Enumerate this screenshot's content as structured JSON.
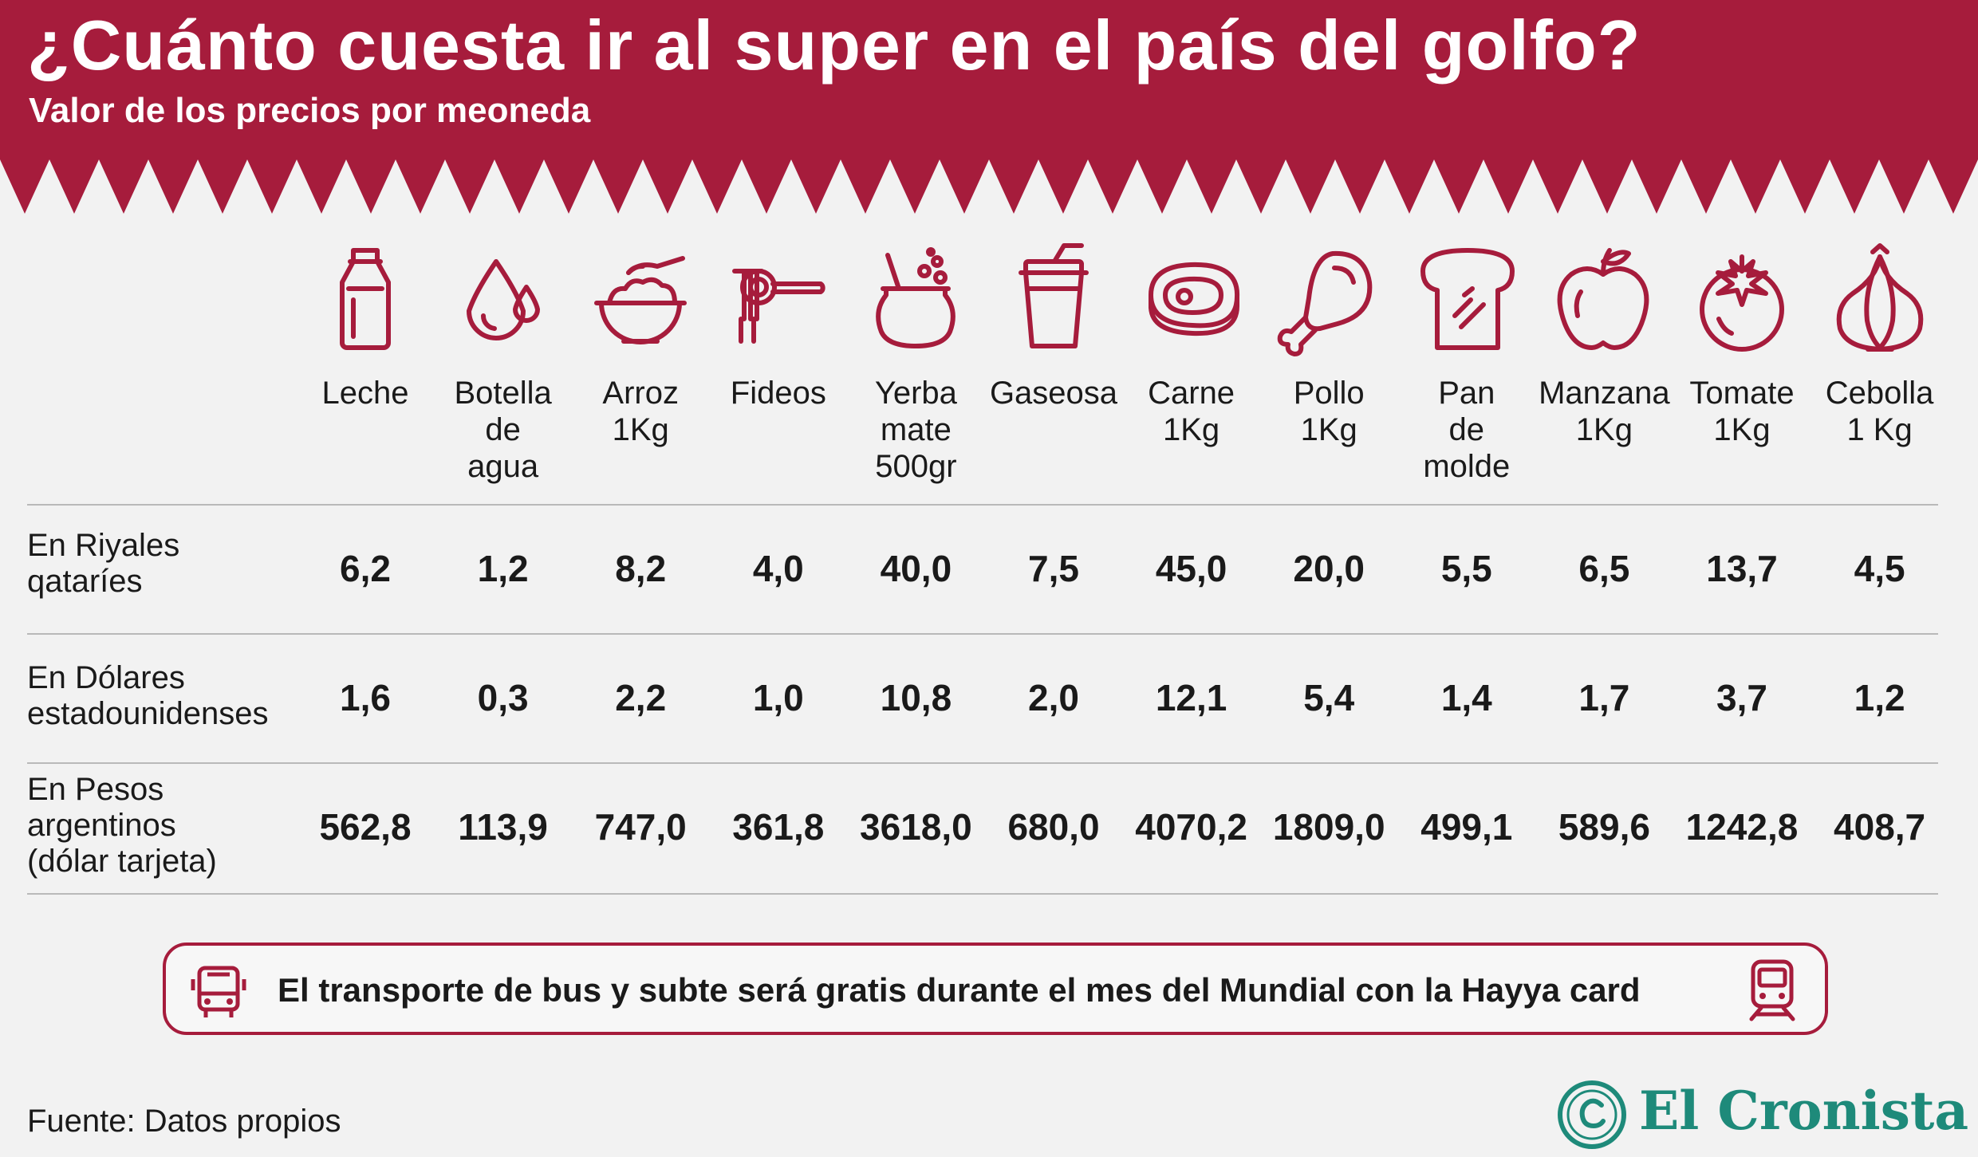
{
  "header": {
    "title": "¿Cuánto cuesta ir al super en el país del golfo?",
    "subtitle": "Valor de los precios por meoneda",
    "color": "#a61c3c"
  },
  "products": [
    {
      "lines": [
        "Leche"
      ],
      "icon": "milk-bottle-icon"
    },
    {
      "lines": [
        "Botella",
        "de",
        "agua"
      ],
      "icon": "water-drops-icon"
    },
    {
      "lines": [
        "Arroz",
        "1Kg"
      ],
      "icon": "rice-bowl-icon"
    },
    {
      "lines": [
        "Fideos"
      ],
      "icon": "noodles-fork-icon"
    },
    {
      "lines": [
        "Yerba",
        "mate",
        "500gr"
      ],
      "icon": "mate-gourd-icon"
    },
    {
      "lines": [
        "Gaseosa"
      ],
      "icon": "soda-cup-icon"
    },
    {
      "lines": [
        "Carne",
        "1Kg"
      ],
      "icon": "steak-icon"
    },
    {
      "lines": [
        "Pollo",
        "1Kg"
      ],
      "icon": "chicken-leg-icon"
    },
    {
      "lines": [
        "Pan",
        "de",
        "molde"
      ],
      "icon": "bread-slice-icon"
    },
    {
      "lines": [
        "Manzana",
        "1Kg"
      ],
      "icon": "apple-icon"
    },
    {
      "lines": [
        "Tomate",
        "1Kg"
      ],
      "icon": "tomato-icon"
    },
    {
      "lines": [
        "Cebolla",
        "1 Kg"
      ],
      "icon": "onion-icon"
    }
  ],
  "rows": [
    {
      "label": [
        "En Riyales",
        "qataríes"
      ],
      "values": [
        "6,2",
        "1,2",
        "8,2",
        "4,0",
        "40,0",
        "7,5",
        "45,0",
        "20,0",
        "5,5",
        "6,5",
        "13,7",
        "4,5"
      ]
    },
    {
      "label": [
        "En Dólares",
        "estadounidenses"
      ],
      "values": [
        "1,6",
        "0,3",
        "2,2",
        "1,0",
        "10,8",
        "2,0",
        "12,1",
        "5,4",
        "1,4",
        "1,7",
        "3,7",
        "1,2"
      ]
    },
    {
      "label": [
        "En Pesos",
        "argentinos",
        "(dólar tarjeta)"
      ],
      "values": [
        "562,8",
        "113,9",
        "747,0",
        "361,8",
        "3618,0",
        "680,0",
        "4070,2",
        "1809,0",
        "499,1",
        "589,6",
        "1242,8",
        "408,7"
      ]
    }
  ],
  "banner": {
    "text": "El transporte de bus y subte será gratis durante el mes del Mundial con la Hayya card",
    "left_icon": "bus-icon",
    "right_icon": "train-icon"
  },
  "source": "Fuente: Datos propios",
  "logo": {
    "text": "El Cronista",
    "color": "#1e8a7a"
  }
}
